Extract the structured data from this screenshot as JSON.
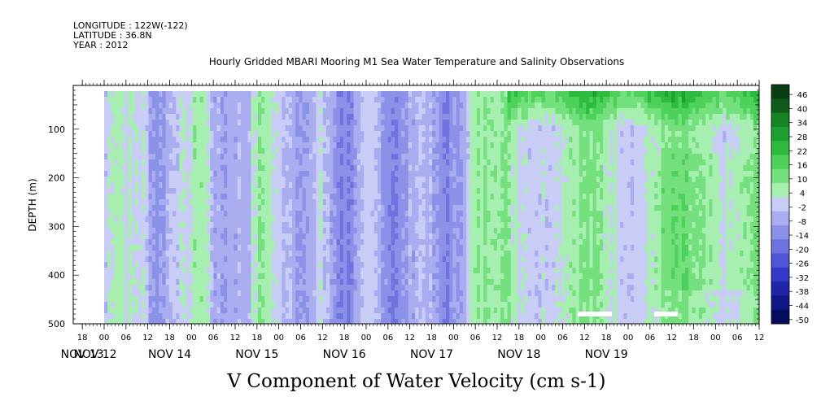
{
  "header": {
    "longitude": "LONGITUDE : 122W(-122)",
    "latitude": "LATITUDE : 36.8N",
    "year": "YEAR : 2012"
  },
  "chart_data": {
    "type": "heatmap",
    "title": "Hourly Gridded MBARI Mooring M1 Sea Water Temperature and Salinity Observations",
    "xlabel": "V Component of Water Velocity (cm s-1)",
    "ylabel": "DEPTH (m)",
    "x_range_hours": [
      0,
      180
    ],
    "ylim": [
      500,
      10
    ],
    "y_ticks": [
      100,
      200,
      300,
      400,
      500
    ],
    "hour_tick_labels": [
      "18",
      "00",
      "06",
      "12",
      "18",
      "00",
      "06",
      "12",
      "18",
      "00",
      "06",
      "12",
      "18",
      "00",
      "06",
      "12",
      "18",
      "00",
      "06",
      "12",
      "18",
      "00",
      "06",
      "12",
      "18",
      "00",
      "06",
      "12",
      "18",
      "00",
      "06",
      "12"
    ],
    "day_labels": [
      "NOV 12",
      "NOV 13",
      "NOV 14",
      "NOV 15",
      "NOV 16",
      "NOV 17",
      "NOV 18",
      "NOV 19"
    ],
    "colorbar": {
      "levels": [
        "46",
        "40",
        "34",
        "28",
        "22",
        "16",
        "10",
        "4",
        "-2",
        "-8",
        "-14",
        "-20",
        "-26",
        "-32",
        "-38",
        "-44",
        "-50"
      ],
      "colors": [
        "#0b3d12",
        "#0f5a1b",
        "#168326",
        "#1f9f32",
        "#2dbb3e",
        "#4ed15a",
        "#74e07d",
        "#a6efb0",
        "#c9cdf6",
        "#a9adf0",
        "#8c91e8",
        "#6e73df",
        "#4f55d6",
        "#3339c7",
        "#1f25a6",
        "#121787",
        "#080c5e"
      ]
    },
    "description_bands": [
      {
        "from_hour": 0,
        "to_hour": 60,
        "pattern": "alternating vertical streaks of light green and lavender/blue, mostly small magnitudes"
      },
      {
        "from_hour": 60,
        "to_hour": 100,
        "pattern": "predominantly negative (blue-lavender) with narrow green streaks"
      },
      {
        "from_hour": 100,
        "to_hour": 180,
        "pattern": "predominantly positive (green), strongest dark green near the surface after Nov 17"
      }
    ]
  }
}
